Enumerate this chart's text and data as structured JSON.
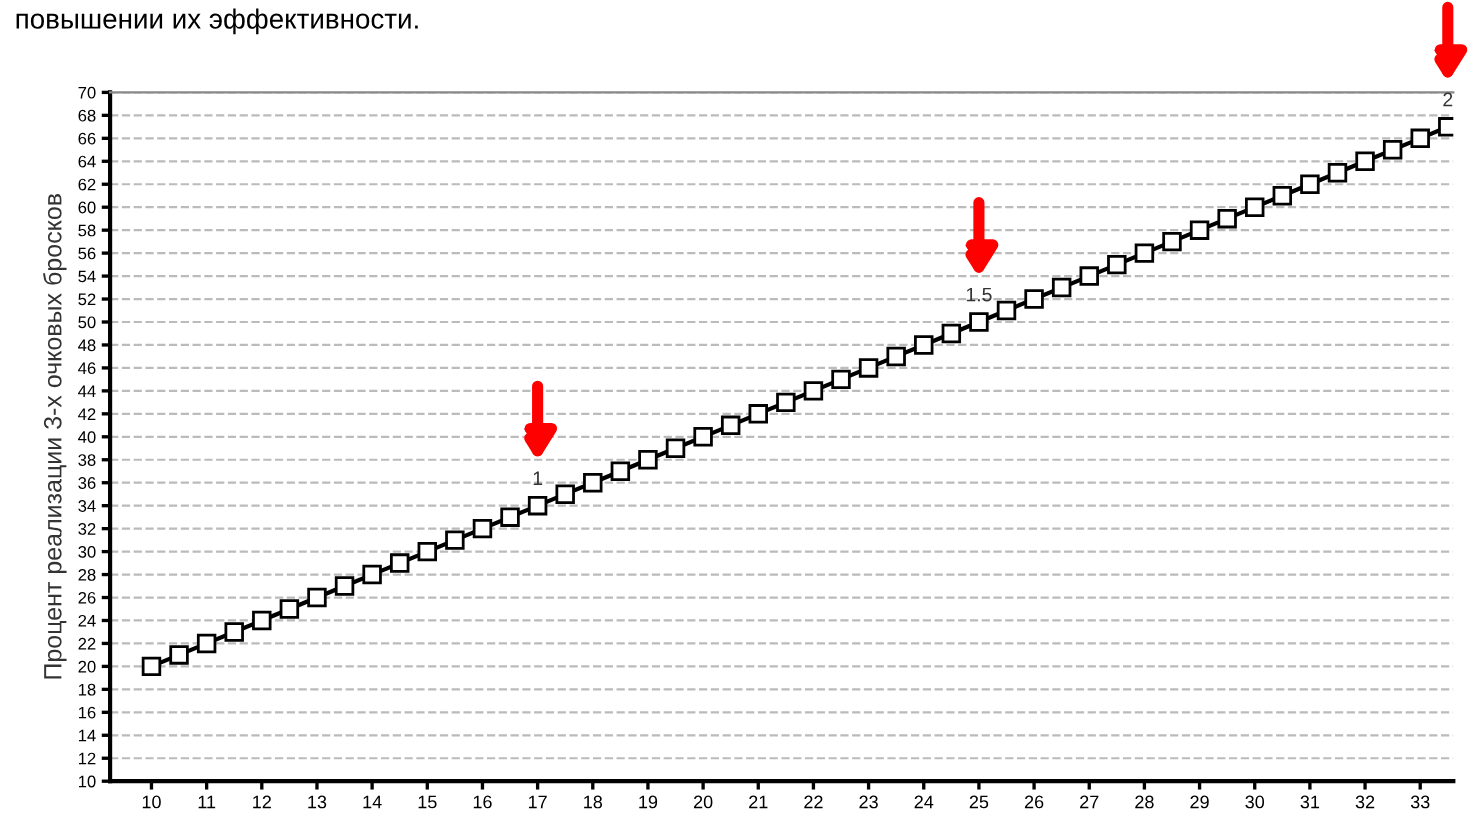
{
  "chart_data": {
    "type": "line",
    "ylabel": "Процент реализации 3-х очковых бросков",
    "x": [
      10,
      10.5,
      11,
      11.5,
      12,
      12.5,
      13,
      13.5,
      14,
      14.5,
      15,
      15.5,
      16,
      16.5,
      17,
      17.5,
      18,
      18.5,
      19,
      19.5,
      20,
      20.5,
      21,
      21.5,
      22,
      22.5,
      23,
      23.5,
      24,
      24.5,
      25,
      25.5,
      26,
      26.5,
      27,
      27.5,
      28,
      28.5,
      29,
      29.5,
      30,
      30.5,
      31,
      31.5,
      32,
      32.5,
      33,
      33.5
    ],
    "series": [
      {
        "color": "#000000",
        "values": [
          20,
          21,
          22,
          23,
          24,
          25,
          26,
          27,
          28,
          29,
          30,
          31,
          32,
          33,
          34,
          35,
          36,
          37,
          38,
          39,
          40,
          41,
          42,
          43,
          44,
          45,
          46,
          47,
          48,
          49,
          50,
          51,
          52,
          53,
          54,
          55,
          56,
          57,
          58,
          59,
          60,
          61,
          62,
          63,
          64,
          65,
          66,
          67
        ]
      }
    ],
    "marker": "square",
    "line_style": "solid",
    "xlim": [
      9.25,
      33.6
    ],
    "xticks": [
      10,
      11,
      12,
      13,
      14,
      15,
      16,
      17,
      18,
      19,
      20,
      21,
      22,
      23,
      24,
      25,
      26,
      27,
      28,
      29,
      30,
      31,
      32,
      33
    ],
    "ylim": [
      10,
      70
    ],
    "yticks": [
      10,
      12,
      14,
      16,
      18,
      20,
      22,
      24,
      26,
      28,
      30,
      32,
      34,
      36,
      38,
      40,
      42,
      44,
      46,
      48,
      50,
      52,
      54,
      56,
      58,
      60,
      62,
      64,
      66,
      68,
      70
    ],
    "grid": "y",
    "legend": false,
    "annotations": [
      "повышении их эффективности.",
      {
        "text": "1",
        "x": 17,
        "y": 34
      },
      {
        "text": "1.5",
        "x": 25,
        "y": 50
      },
      {
        "text": "2",
        "x": 33.5,
        "y": 67
      }
    ]
  }
}
